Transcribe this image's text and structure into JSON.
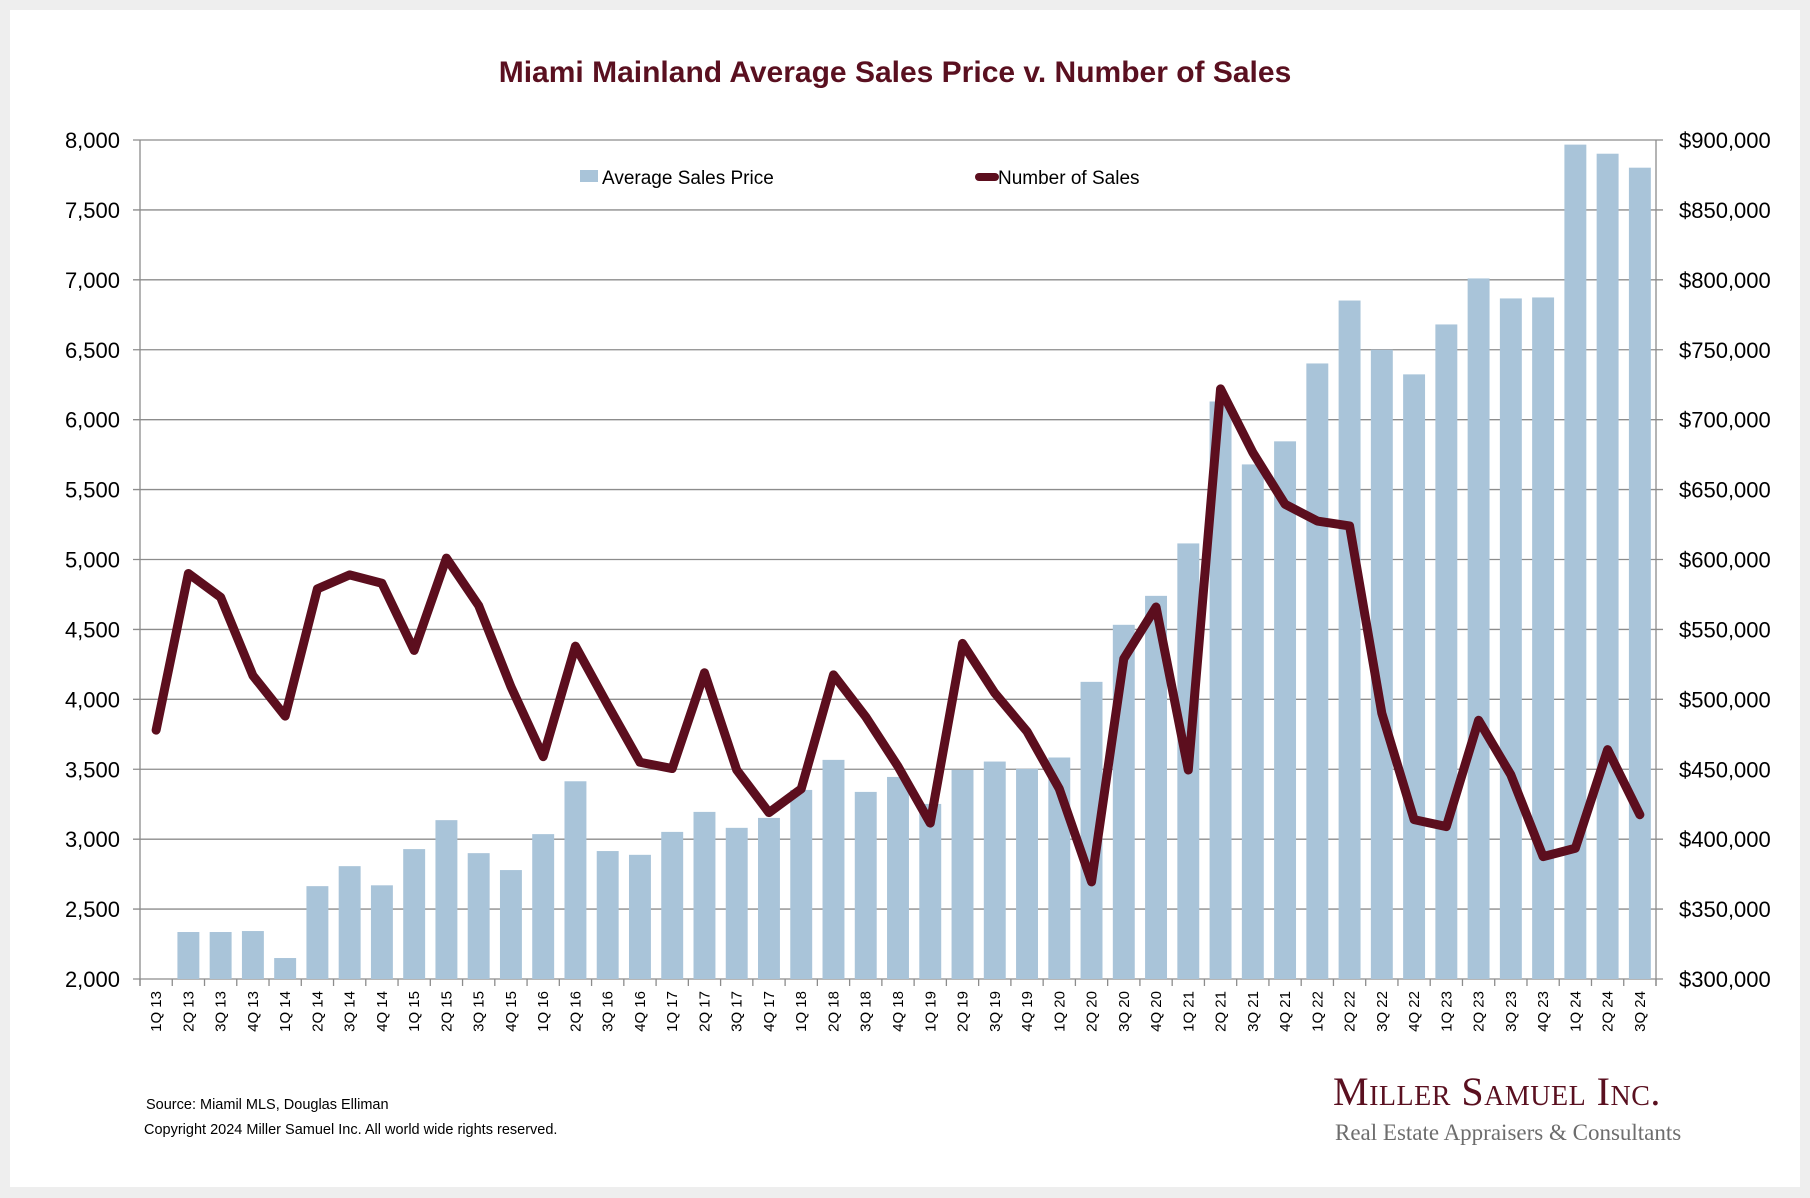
{
  "chart_data": {
    "type": "bar+line",
    "title": "Miami Mainland Average Sales Price v. Number of Sales",
    "categories": [
      "1Q 13",
      "2Q 13",
      "3Q 13",
      "4Q 13",
      "1Q 14",
      "2Q 14",
      "3Q 14",
      "4Q 14",
      "1Q 15",
      "2Q 15",
      "3Q 15",
      "4Q 15",
      "1Q 16",
      "2Q 16",
      "3Q 16",
      "4Q 16",
      "1Q 17",
      "2Q 17",
      "3Q 17",
      "4Q 17",
      "1Q 18",
      "2Q 18",
      "3Q 18",
      "4Q 18",
      "1Q 19",
      "2Q 19",
      "3Q 19",
      "4Q 19",
      "1Q 20",
      "2Q 20",
      "3Q 20",
      "4Q 20",
      "1Q 21",
      "2Q 21",
      "3Q 21",
      "4Q 21",
      "1Q 22",
      "2Q 22",
      "3Q 22",
      "4Q 22",
      "1Q 23",
      "2Q 23",
      "3Q 23",
      "4Q 23",
      "1Q 24",
      "2Q 24",
      "3Q 24"
    ],
    "series": [
      {
        "name": "Average Sales Price",
        "type": "bar",
        "axis": "right",
        "color": "#a9c4d9",
        "values": [
          null,
          333600,
          333600,
          334300,
          315000,
          366400,
          380700,
          367000,
          392900,
          413600,
          390000,
          377900,
          403600,
          441400,
          391500,
          388800,
          405200,
          419500,
          408100,
          415200,
          435200,
          456700,
          433800,
          444500,
          425200,
          449500,
          455500,
          450300,
          458400,
          512500,
          553300,
          574000,
          611500,
          713000,
          668000,
          684500,
          740200,
          785200,
          750000,
          732400,
          768100,
          801000,
          786700,
          787400,
          896700,
          890200,
          880200
        ]
      },
      {
        "name": "Number of Sales",
        "type": "line",
        "axis": "left",
        "color": "#5c0e1e",
        "values": [
          3780,
          4900,
          4730,
          4170,
          3880,
          4790,
          4890,
          4830,
          4350,
          5010,
          4670,
          4090,
          3590,
          4380,
          3960,
          3550,
          3505,
          4190,
          3495,
          3190,
          3360,
          4175,
          3875,
          3520,
          3115,
          4400,
          4045,
          3770,
          3360,
          2695,
          4290,
          4660,
          3495,
          6220,
          5765,
          5395,
          5275,
          5240,
          3900,
          3140,
          3090,
          3850,
          3460,
          2875,
          2935,
          3640,
          3175
        ]
      }
    ],
    "left_axis": {
      "min": 2000,
      "max": 8000,
      "step": 500,
      "ticks": [
        "2,000",
        "2,500",
        "3,000",
        "3,500",
        "4,000",
        "4,500",
        "5,000",
        "5,500",
        "6,000",
        "6,500",
        "7,000",
        "7,500",
        "8,000"
      ]
    },
    "right_axis": {
      "min": 300000,
      "max": 900000,
      "step": 50000,
      "ticks": [
        "$300,000",
        "$350,000",
        "$400,000",
        "$450,000",
        "$500,000",
        "$550,000",
        "$600,000",
        "$650,000",
        "$700,000",
        "$750,000",
        "$800,000",
        "$850,000",
        "$900,000"
      ]
    },
    "grid": true,
    "legend_placement": "top-center",
    "xlabel": "",
    "ylabel": ""
  },
  "legend": {
    "bar_label": "Average Sales Price",
    "line_label": "Number of Sales"
  },
  "footer": {
    "source": "Source: Miamil MLS, Douglas Elliman",
    "copyright": "Copyright 2024 Miller Samuel Inc. All world wide rights reserved."
  },
  "logo": {
    "name": "Miller Samuel Inc.",
    "tagline": "Real Estate Appraisers & Consultants"
  }
}
